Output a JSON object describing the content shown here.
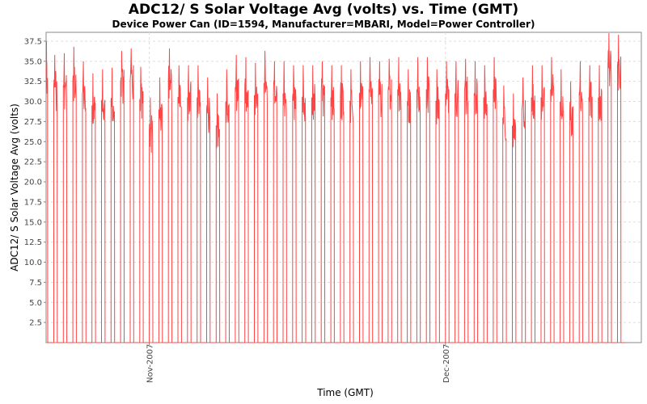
{
  "chart_data": {
    "type": "line",
    "title": "ADC12/ S Solar Voltage Avg (volts) vs. Time (GMT)",
    "subtitle": "Device Power Can (ID=1594, Manufacturer=MBARI, Model=Power Controller)",
    "xlabel": "Time (GMT)",
    "ylabel": "ADC12/ S Solar Voltage Avg (volts)",
    "ylim": [
      0,
      38.6
    ],
    "yticks": [
      "2.5",
      "5.0",
      "7.5",
      "10.0",
      "12.5",
      "15.0",
      "17.5",
      "20.0",
      "22.5",
      "25.0",
      "27.5",
      "30.0",
      "32.5",
      "35.0",
      "37.5"
    ],
    "xlim_days_from_start": [
      0,
      62.3
    ],
    "start_date": "2007-10-21",
    "xticks": [
      {
        "label": "Nov-2007",
        "day": 10.8
      },
      {
        "label": "Dec-2007",
        "day": 41.8
      }
    ],
    "grid": true,
    "series_color": "#ff4444",
    "series": [
      {
        "name": "ADC12/ S Solar Voltage Avg",
        "daily_peak_volts": [
          37.5,
          35.8,
          36,
          36.8,
          35,
          33.5,
          34,
          34.2,
          36.3,
          36.6,
          34.3,
          30.5,
          33,
          36.6,
          34.5,
          34.5,
          34.5,
          33,
          31,
          34,
          35.8,
          35.5,
          34.8,
          36.3,
          35,
          35,
          34.5,
          34.5,
          34.5,
          35,
          34.5,
          34.5,
          34,
          35,
          35.5,
          35,
          35.3,
          35.5,
          34,
          35.5,
          35.5,
          34,
          35,
          35,
          35.3,
          35,
          34.5,
          35.5,
          32,
          31,
          33,
          34.5,
          34.5,
          35.5,
          34,
          32.5,
          35,
          34.5,
          34.5,
          38.5,
          38.3
        ],
        "night_volts": 0
      }
    ]
  }
}
